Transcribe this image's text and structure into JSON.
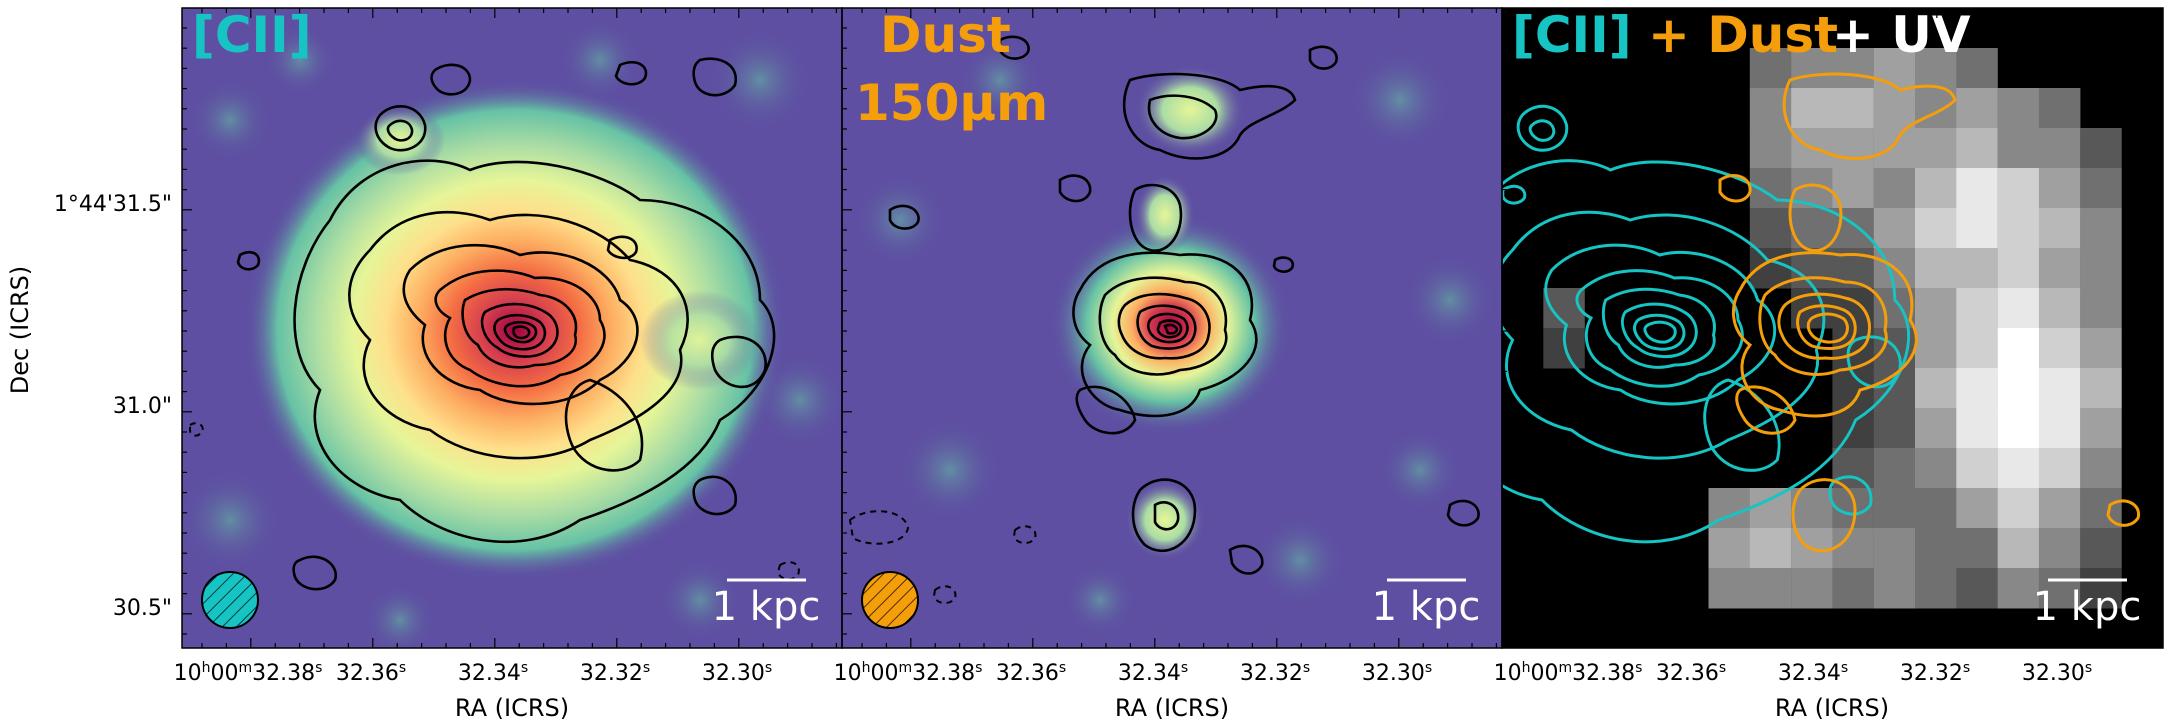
{
  "panels": [
    {
      "title": "[CII]",
      "title_color": "#17c4c4",
      "colormap": "spectral",
      "scale_bar": "1 kpc",
      "beam_color": "#17c4c4"
    },
    {
      "title_line1": "Dust",
      "title_line2": "150μm",
      "title_color": "#f59e0b",
      "colormap": "spectral",
      "scale_bar": "1 kpc",
      "beam_color": "#f59e0b"
    },
    {
      "title_part1": "[CII]",
      "title_part1_color": "#17c4c4",
      "title_part2": "+ Dust",
      "title_part2_color": "#f59e0b",
      "title_part3": "+ UV",
      "title_part3_color": "#ffffff",
      "colormap": "grayscale",
      "scale_bar": "1 kpc"
    }
  ],
  "axes": {
    "xlabel": "RA (ICRS)",
    "ylabel": "Dec (ICRS)",
    "x_ticks": [
      "10h00m32.38s",
      "32.36s",
      "32.34s",
      "32.32s",
      "32.30s"
    ],
    "y_ticks": [
      "1°44'31.5\"",
      "31.0\"",
      "30.5\""
    ]
  },
  "colors": {
    "cii_contour": "#17c4c4",
    "dust_contour": "#f59e0b",
    "map_background": "#5e4fa2"
  }
}
